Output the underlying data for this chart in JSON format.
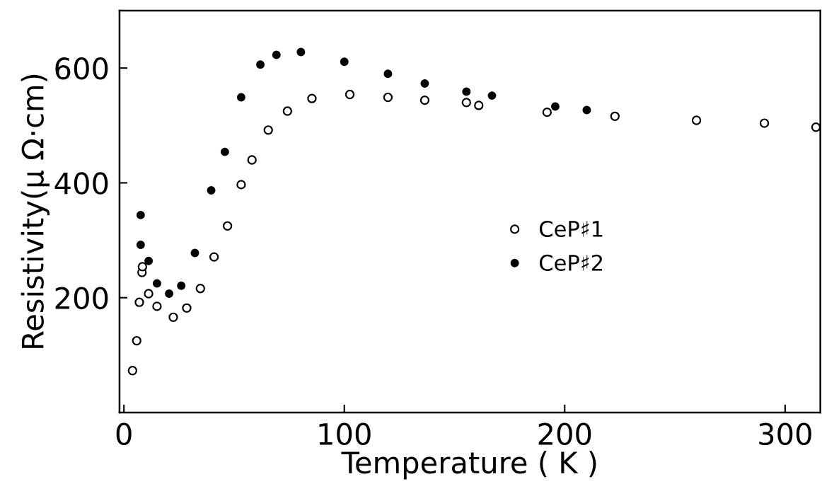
{
  "chart_data": {
    "type": "scatter",
    "xlabel": "Temperature ( K )",
    "ylabel": "Resistivity(μ Ω·cm)",
    "xlim": [
      -2,
      316
    ],
    "ylim": [
      0,
      700
    ],
    "xticks": [
      0,
      100,
      200,
      300
    ],
    "yticks": [
      200,
      400,
      600
    ],
    "marker": "circle",
    "legend": "center",
    "grid": false,
    "series": [
      {
        "name": "CeP♯1",
        "color": "#000000",
        "x": [
          3.9,
          5.8,
          7.0,
          8.2,
          8.4,
          11.2,
          15,
          22.4,
          28.5,
          34.7,
          40.9,
          47,
          53.2,
          58.1,
          65.5,
          74.2,
          85.3,
          102.5,
          119.8,
          136.5,
          155.4,
          161,
          192,
          222.8,
          259.8,
          290.6,
          314
        ],
        "values": [
          73,
          125,
          192,
          244,
          254,
          207,
          185,
          166,
          182,
          216,
          271,
          325,
          397,
          440,
          492,
          525,
          547,
          554,
          549,
          544,
          540,
          535,
          523,
          516,
          509,
          504,
          497
        ]
      },
      {
        "name": "CeP♯2",
        "color": "#000000",
        "x": [
          7.6,
          7.6,
          11.2,
          15,
          20.5,
          26,
          32.2,
          39.6,
          45.8,
          53.2,
          61.9,
          69.2,
          80.3,
          100,
          119.8,
          136.5,
          155.4,
          167,
          195.7,
          210
        ],
        "values": [
          344,
          292,
          264,
          225,
          207,
          221,
          278,
          387,
          454,
          549,
          606,
          623,
          628,
          611,
          590,
          573,
          559,
          552,
          533,
          527
        ]
      }
    ]
  }
}
